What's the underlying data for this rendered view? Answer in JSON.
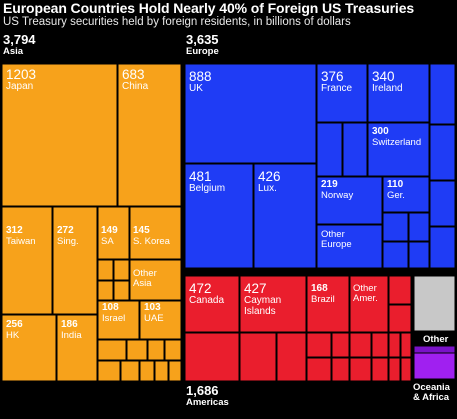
{
  "title": "European Countries Hold Nearly 40% of Foreign US Treasuries",
  "subtitle": "US Treasury securities held by foreign residents, in billions of dollars",
  "colors": {
    "Asia": "#f7a21b",
    "Europe": "#1f3cf5",
    "Americas": "#ea1e2d",
    "Other": "#c8c8c8",
    "Oceania & Africa": "#a020f0",
    "background": "#000000"
  },
  "groups": [
    {
      "name": "Asia",
      "value": "3,794"
    },
    {
      "name": "Europe",
      "value": "3,635"
    },
    {
      "name": "Americas",
      "value": "1,686"
    },
    {
      "name": "Other",
      "value": ""
    },
    {
      "name": "Oceania & Africa",
      "value": ""
    }
  ],
  "chart_data": {
    "type": "treemap",
    "title": "European Countries Hold Nearly 40% of Foreign US Treasuries",
    "subtitle": "US Treasury securities held by foreign residents, in billions of dollars",
    "unit": "billions of dollars",
    "groups": [
      {
        "name": "Asia",
        "total": 3794,
        "children": [
          {
            "name": "Japan",
            "value": 1203
          },
          {
            "name": "China",
            "value": 683
          },
          {
            "name": "Taiwan",
            "value": 312
          },
          {
            "name": "Sing.",
            "value": 272
          },
          {
            "name": "SA",
            "value": 149
          },
          {
            "name": "S. Korea",
            "value": 145
          },
          {
            "name": "HK",
            "value": 256
          },
          {
            "name": "India",
            "value": 186
          },
          {
            "name": "Israel",
            "value": 108
          },
          {
            "name": "UAE",
            "value": 103
          },
          {
            "name": "Other Asia",
            "value": null
          }
        ]
      },
      {
        "name": "Europe",
        "total": 3635,
        "children": [
          {
            "name": "UK",
            "value": 888
          },
          {
            "name": "France",
            "value": 376
          },
          {
            "name": "Ireland",
            "value": 340
          },
          {
            "name": "Switzerland",
            "value": 300
          },
          {
            "name": "Belgium",
            "value": 481
          },
          {
            "name": "Lux.",
            "value": 426
          },
          {
            "name": "Norway",
            "value": 219
          },
          {
            "name": "Ger.",
            "value": 110
          },
          {
            "name": "Other Europe",
            "value": null
          }
        ]
      },
      {
        "name": "Americas",
        "total": 1686,
        "children": [
          {
            "name": "Canada",
            "value": 472
          },
          {
            "name": "Cayman Islands",
            "value": 427
          },
          {
            "name": "Brazil",
            "value": 168
          },
          {
            "name": "Other Amer.",
            "value": null
          }
        ]
      },
      {
        "name": "Other",
        "total": null,
        "children": []
      },
      {
        "name": "Oceania & Africa",
        "total": null,
        "children": []
      }
    ]
  }
}
